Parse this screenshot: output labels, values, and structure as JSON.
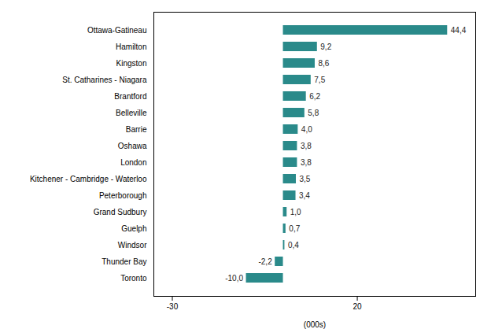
{
  "chart_data": {
    "type": "bar",
    "orientation": "horizontal",
    "categories": [
      "Toronto",
      "Thunder Bay",
      "Windsor",
      "Guelph",
      "Grand Sudbury",
      "Peterborough",
      "Kitchener - Cambridge - Waterloo",
      "London",
      "Oshawa",
      "Barrie",
      "Belleville",
      "Brantford",
      "St. Catharines - Niagara",
      "Kingston",
      "Hamilton",
      "Ottawa-Gatineau"
    ],
    "values": [
      -10.0,
      -2.2,
      0.4,
      0.7,
      1.0,
      3.4,
      3.5,
      3.8,
      3.8,
      4.0,
      5.8,
      6.2,
      7.5,
      8.6,
      9.2,
      44.4
    ],
    "value_labels": [
      "-10,0",
      "-2,2",
      "0,4",
      "0,7",
      "1,0",
      "3,4",
      "3,5",
      "3,8",
      "3,8",
      "4,0",
      "5,8",
      "6,2",
      "7,5",
      "8,6",
      "9,2",
      "44,4"
    ],
    "data_labels": true,
    "color": "#2a8a8a",
    "xlabel": "(000s)",
    "xlim": [
      -35,
      52
    ],
    "xticks": [
      -30,
      20
    ],
    "grid": false
  }
}
